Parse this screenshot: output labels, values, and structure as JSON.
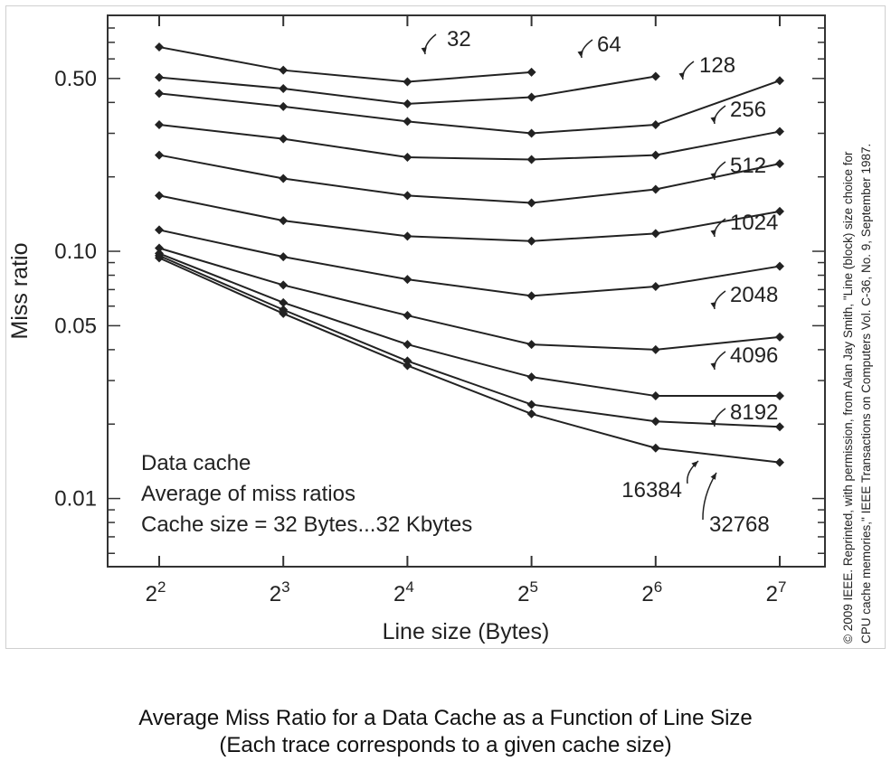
{
  "chart_data": {
    "type": "line",
    "title": "",
    "xlabel": "Line size (Bytes)",
    "ylabel": "Miss ratio",
    "y_scale": "log",
    "x_scale": "log2",
    "x": [
      4,
      8,
      16,
      32,
      64,
      128
    ],
    "x_tick_labels": [
      {
        "base": "2",
        "exp": "2"
      },
      {
        "base": "2",
        "exp": "3"
      },
      {
        "base": "2",
        "exp": "4"
      },
      {
        "base": "2",
        "exp": "5"
      },
      {
        "base": "2",
        "exp": "6"
      },
      {
        "base": "2",
        "exp": "7"
      }
    ],
    "y_ticks": [
      0.01,
      0.05,
      0.1,
      0.5
    ],
    "y_tick_labels": [
      "0.01",
      "0.05",
      "0.10",
      "0.50"
    ],
    "ylim": [
      0.0053,
      0.9
    ],
    "grid": false,
    "series": [
      {
        "name": "32",
        "values": [
          0.67,
          0.54,
          0.485,
          0.53,
          null,
          null
        ]
      },
      {
        "name": "64",
        "values": [
          0.505,
          0.455,
          0.395,
          0.42,
          0.51,
          null
        ]
      },
      {
        "name": "128",
        "values": [
          0.435,
          0.385,
          0.335,
          0.3,
          0.325,
          0.49
        ]
      },
      {
        "name": "256",
        "values": [
          0.325,
          0.285,
          0.24,
          0.235,
          0.245,
          0.305
        ]
      },
      {
        "name": "512",
        "values": [
          0.245,
          0.197,
          0.168,
          0.157,
          0.178,
          0.226
        ]
      },
      {
        "name": "1024",
        "values": [
          0.168,
          0.133,
          0.115,
          0.11,
          0.118,
          0.145
        ]
      },
      {
        "name": "2048",
        "values": [
          0.122,
          0.095,
          0.077,
          0.066,
          0.072,
          0.087
        ]
      },
      {
        "name": "4096",
        "values": [
          0.103,
          0.073,
          0.055,
          0.042,
          0.04,
          0.045
        ]
      },
      {
        "name": "8192",
        "values": [
          0.098,
          0.062,
          0.042,
          0.031,
          0.026,
          0.026
        ]
      },
      {
        "name": "16384",
        "values": [
          0.096,
          0.058,
          0.036,
          0.024,
          0.0205,
          0.0195
        ]
      },
      {
        "name": "32768",
        "values": [
          0.094,
          0.056,
          0.0345,
          0.022,
          0.016,
          0.014
        ]
      }
    ],
    "annotations": [
      "Data cache",
      "Average of miss ratios",
      "Cache size = 32 Bytes...32 Kbytes"
    ]
  },
  "credit_lines": [
    "© 2009 IEEE. Reprinted, with permission, from Alan Jay Smith, \"Line (block) size choice for",
    "CPU cache memories,\" IEEE Transactions on Computers Vol. C-36, No. 9, September 1987."
  ],
  "caption": {
    "line1": "Average Miss Ratio for a Data Cache as a Function of Line Size",
    "line2": "(Each trace corresponds to a given cache size)"
  }
}
